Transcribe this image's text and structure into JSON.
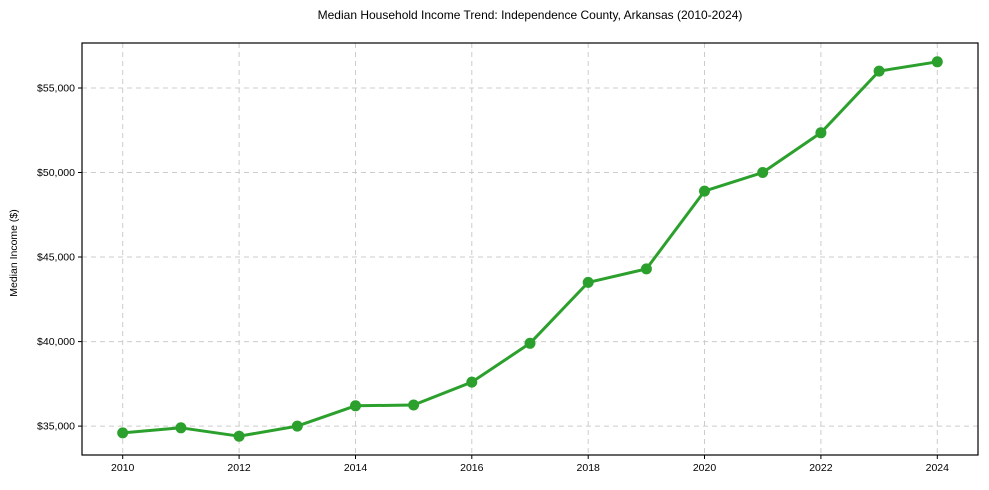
{
  "chart_data": {
    "type": "line",
    "title": "Median Household Income Trend: Independence County, Arkansas (2010-2024)",
    "xlabel": "",
    "ylabel": "Median Income ($)",
    "series": [
      {
        "name": "Median Household Income",
        "x": [
          2010,
          2011,
          2012,
          2013,
          2014,
          2015,
          2016,
          2017,
          2018,
          2019,
          2020,
          2021,
          2022,
          2023,
          2024
        ],
        "values": [
          34600,
          34900,
          34400,
          35000,
          36200,
          36250,
          37600,
          39900,
          43500,
          44300,
          48900,
          50000,
          52350,
          56000,
          56550
        ]
      }
    ],
    "xticks": [
      2010,
      2012,
      2014,
      2016,
      2018,
      2020,
      2022,
      2024
    ],
    "yticks": [
      35000,
      40000,
      45000,
      50000,
      55000
    ],
    "ytick_labels": [
      "$35,000",
      "$40,000",
      "$45,000",
      "$50,000",
      "$55,000"
    ],
    "xlim": [
      2009.3,
      2024.7
    ],
    "ylim": [
      33290,
      57660
    ],
    "grid": "on",
    "grid_style": "dashed",
    "legend_position": "none",
    "colors": {
      "line": "#2ca02c",
      "marker": "#2ca02c",
      "grid": "#cccccc",
      "spine": "#000000",
      "text": "#000000",
      "background": "#ffffff"
    }
  }
}
